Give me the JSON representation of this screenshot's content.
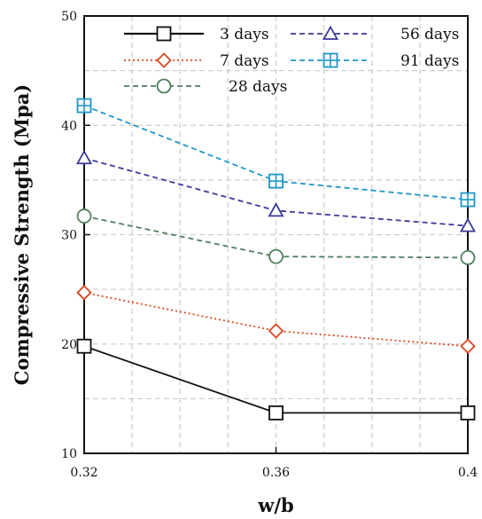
{
  "chart_data": {
    "type": "line",
    "x": [
      0.32,
      0.36,
      0.4
    ],
    "x_tick_labels": [
      "0.32",
      "0.36",
      "0.4"
    ],
    "y_tick_labels": [
      "10",
      "20",
      "30",
      "40",
      "50"
    ],
    "xlim": [
      0.32,
      0.4
    ],
    "ylim": [
      10,
      50
    ],
    "xlabel": "w/b",
    "ylabel": "Compressive Strength (Mpa)",
    "grid": true,
    "legend_position": "top",
    "series": [
      {
        "name": "3 days",
        "values": [
          19.8,
          13.7,
          13.7
        ],
        "color": "#111111",
        "marker": "square",
        "dash": "solid"
      },
      {
        "name": "7 days",
        "values": [
          24.7,
          21.2,
          19.8
        ],
        "color": "#d9481e",
        "marker": "diamond",
        "dash": "dotted"
      },
      {
        "name": "28 days",
        "values": [
          31.7,
          28.0,
          27.9
        ],
        "color": "#4e7f5e",
        "marker": "circle",
        "dash": "dashed"
      },
      {
        "name": "56 days",
        "values": [
          37.0,
          32.2,
          30.8
        ],
        "color": "#3c3a99",
        "marker": "triangle",
        "dash": "dashed"
      },
      {
        "name": "91 days",
        "values": [
          41.8,
          34.9,
          33.2
        ],
        "color": "#1e96c8",
        "marker": "square-plus",
        "dash": "dashed"
      }
    ]
  }
}
